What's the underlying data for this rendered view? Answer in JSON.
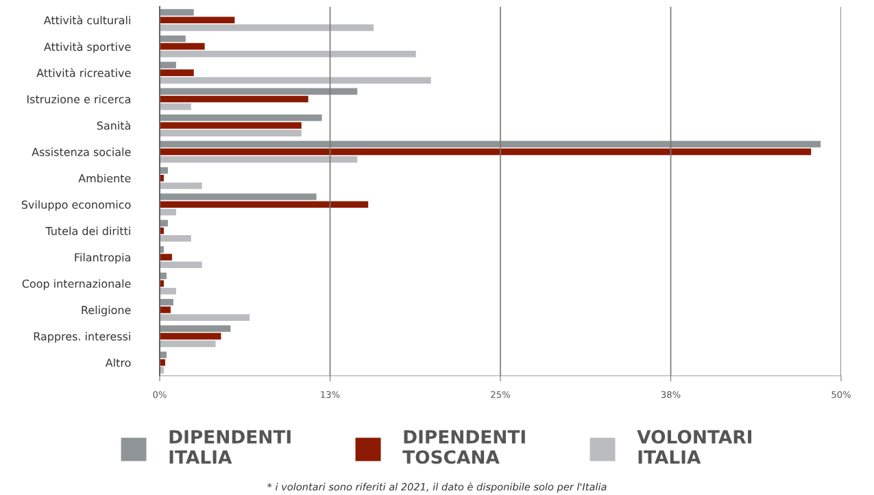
{
  "chart_data": {
    "type": "bar",
    "orientation": "horizontal",
    "categories": [
      "Attività culturali",
      "Attività sportive",
      "Attività ricreative",
      "Istruzione e ricerca",
      "Sanità",
      "Assistenza sociale",
      "Ambiente",
      "Sviluppo economico",
      "Tutela dei diritti",
      "Filantropia",
      "Coop internazionale",
      "Religione",
      "Rappres. interessi",
      "Altro"
    ],
    "series": [
      {
        "name": "DIPENDENTI ITALIA",
        "color": "#8f9496",
        "values": [
          2.5,
          1.9,
          1.2,
          14.5,
          11.9,
          48.5,
          0.6,
          11.5,
          0.6,
          0.3,
          0.5,
          1.0,
          5.2,
          0.5
        ]
      },
      {
        "name": "DIPENDENTI TOSCANA",
        "color": "#8b1a02",
        "values": [
          5.5,
          3.3,
          2.5,
          10.9,
          10.4,
          47.8,
          0.3,
          15.3,
          0.3,
          0.9,
          0.3,
          0.8,
          4.5,
          0.4
        ]
      },
      {
        "name": "VOLONTARI ITALIA",
        "color": "#bbbcc0",
        "values": [
          15.7,
          18.8,
          19.9,
          2.3,
          10.4,
          14.5,
          3.1,
          1.2,
          2.3,
          3.1,
          1.2,
          6.6,
          4.1,
          0.3
        ]
      }
    ],
    "xlim": [
      0,
      50
    ],
    "xticks": [
      {
        "value": 0,
        "label": "0%"
      },
      {
        "value": 12.5,
        "label": "13%"
      },
      {
        "value": 25,
        "label": "25%"
      },
      {
        "value": 37.5,
        "label": "38%"
      },
      {
        "value": 50,
        "label": "50%"
      }
    ],
    "grid": "x",
    "legend": "bottom",
    "annotations": [
      "* i volontari sono riferiti al 2021, il dato è disponibile solo per l'Italia"
    ]
  }
}
